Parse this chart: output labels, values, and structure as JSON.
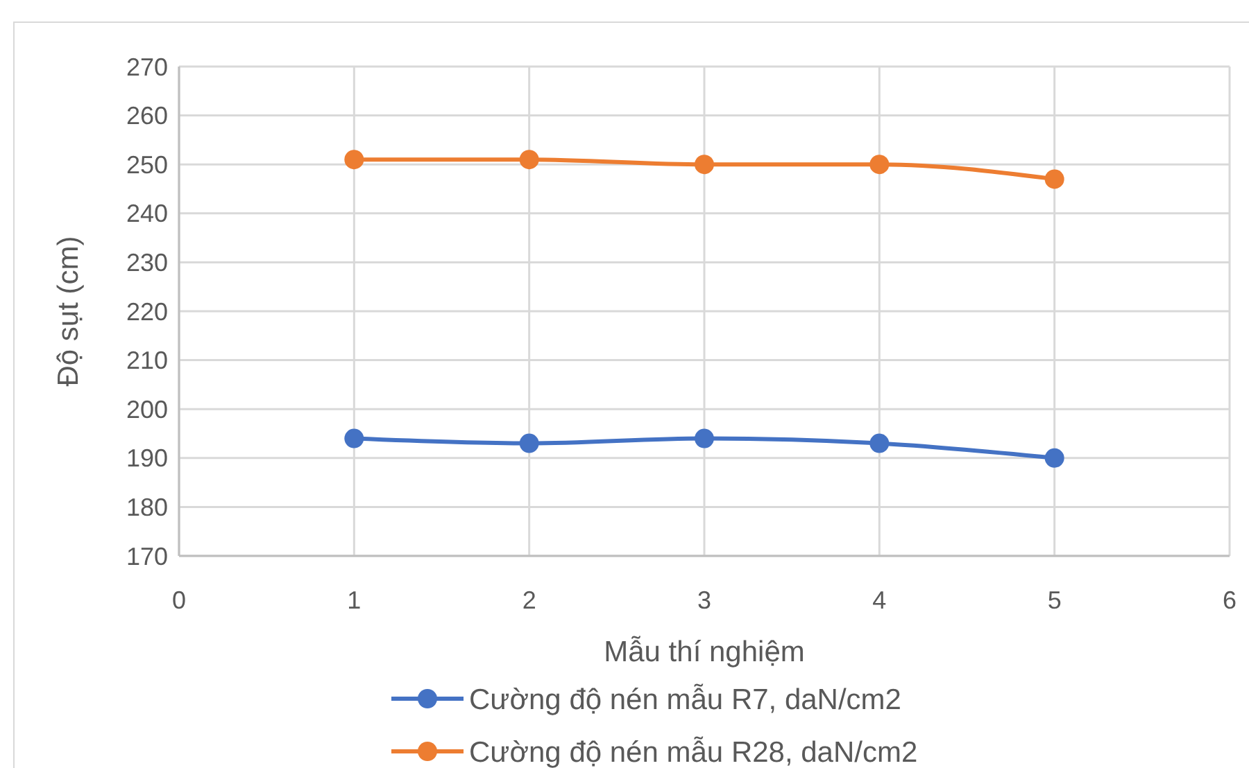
{
  "chart_data": {
    "type": "line",
    "xlabel": "Mẫu thí nghiệm",
    "ylabel": "Độ sụt (cm)",
    "x": [
      1,
      2,
      3,
      4,
      5
    ],
    "series": [
      {
        "name": "Cường độ nén mẫu R7, daN/cm2",
        "color": "#4472c4",
        "values": [
          194,
          193,
          194,
          193,
          190
        ]
      },
      {
        "name": "Cường độ nén mẫu R28, daN/cm2",
        "color": "#ed7d31",
        "values": [
          251,
          251,
          250,
          250,
          247
        ]
      }
    ],
    "xlim": [
      0,
      6
    ],
    "xticks": [
      0,
      1,
      2,
      3,
      4,
      5,
      6
    ],
    "ylim": [
      170,
      270
    ],
    "yticks": [
      170,
      180,
      190,
      200,
      210,
      220,
      230,
      240,
      250,
      260,
      270
    ],
    "grid": true,
    "legend": "bottom",
    "marker": "circle",
    "line_style": "solid"
  }
}
